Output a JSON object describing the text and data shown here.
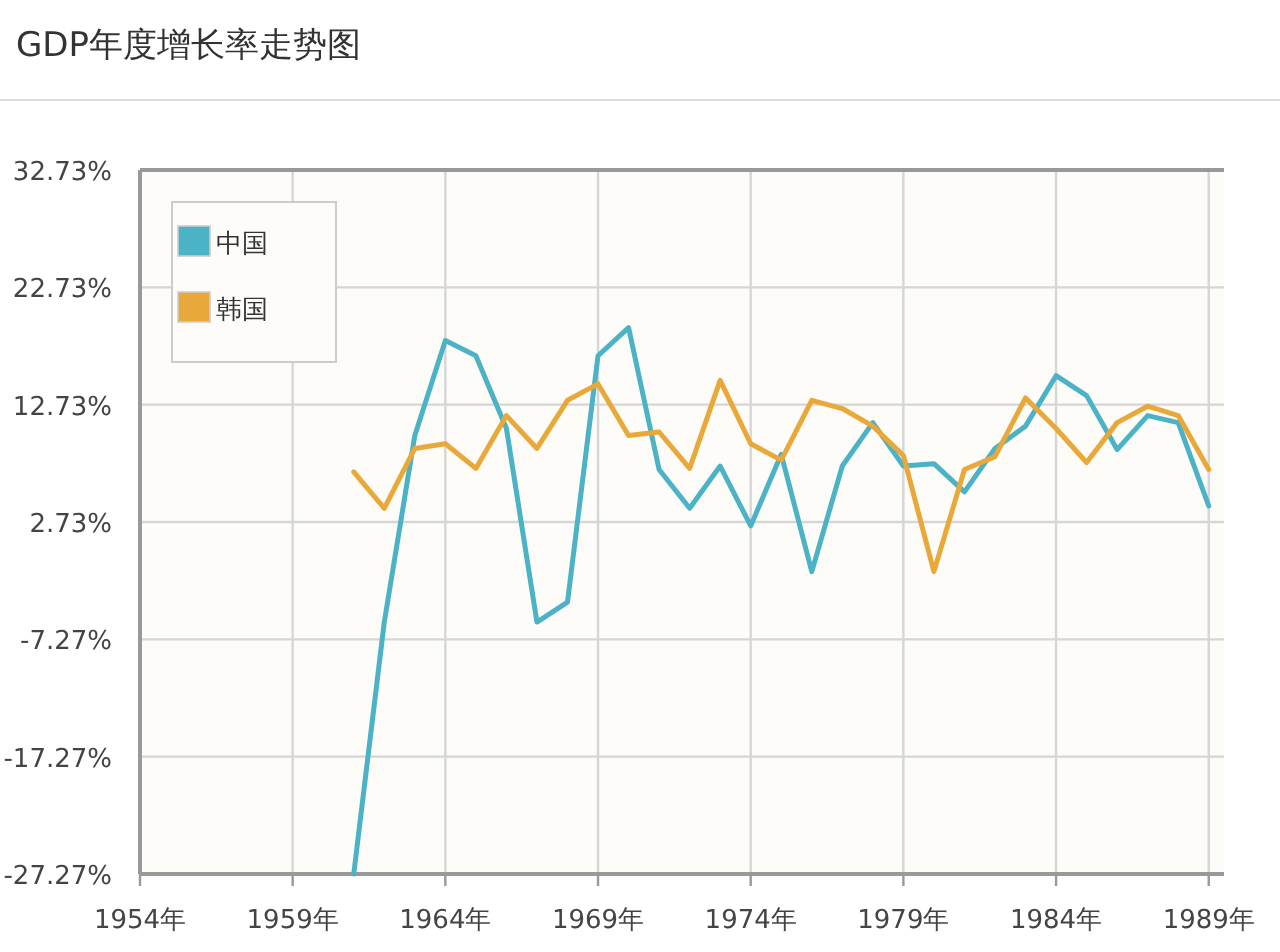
{
  "chart_data": {
    "type": "line",
    "title": "GDP年度增长率走势图",
    "x": [
      1961,
      1962,
      1963,
      1964,
      1965,
      1966,
      1967,
      1968,
      1969,
      1970,
      1971,
      1972,
      1973,
      1974,
      1975,
      1976,
      1977,
      1978,
      1979,
      1980,
      1981,
      1982,
      1983,
      1984,
      1985,
      1986,
      1987,
      1988,
      1989
    ],
    "series": [
      {
        "name": "中国",
        "color": "#4bb3c5",
        "values": [
          -27.27,
          -5.8,
          10.1,
          18.2,
          16.9,
          10.7,
          -5.8,
          -4.1,
          16.9,
          19.3,
          7.2,
          3.9,
          7.5,
          2.4,
          8.5,
          -1.5,
          7.5,
          11.2,
          7.5,
          7.7,
          5.3,
          9.0,
          10.9,
          15.2,
          13.5,
          8.9,
          11.8,
          11.2,
          4.1
        ]
      },
      {
        "name": "韩国",
        "color": "#e8a93a",
        "values": [
          7.0,
          3.9,
          9.0,
          9.4,
          7.3,
          11.8,
          9.0,
          13.1,
          14.5,
          10.1,
          10.4,
          7.3,
          14.8,
          9.4,
          8.0,
          13.1,
          12.4,
          10.9,
          8.4,
          -1.5,
          7.2,
          8.3,
          13.3,
          10.7,
          7.8,
          11.2,
          12.6,
          11.8,
          7.2
        ]
      }
    ],
    "xlim": [
      1954,
      1989.5
    ],
    "xticks": [
      {
        "value": 1954,
        "label": "1954年"
      },
      {
        "value": 1959,
        "label": "1959年"
      },
      {
        "value": 1964,
        "label": "1964年"
      },
      {
        "value": 1969,
        "label": "1969年"
      },
      {
        "value": 1974,
        "label": "1974年"
      },
      {
        "value": 1979,
        "label": "1979年"
      },
      {
        "value": 1984,
        "label": "1984年"
      },
      {
        "value": 1989,
        "label": "1989年"
      }
    ],
    "ylim": [
      -27.27,
      32.73
    ],
    "yticks": [
      {
        "value": -27.27,
        "label": "-27.27%"
      },
      {
        "value": -17.27,
        "label": "-17.27%"
      },
      {
        "value": -7.27,
        "label": "-7.27%"
      },
      {
        "value": 2.73,
        "label": "2.73%"
      },
      {
        "value": 12.73,
        "label": "12.73%"
      },
      {
        "value": 22.73,
        "label": "22.73%"
      },
      {
        "value": 32.73,
        "label": "32.73%"
      }
    ],
    "grid": true,
    "legend": "top left",
    "marker": "none",
    "line_style": "solid"
  }
}
